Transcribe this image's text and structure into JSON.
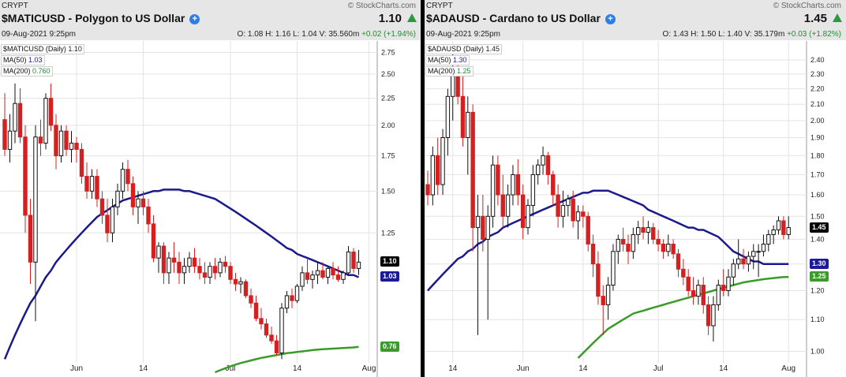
{
  "charts": [
    {
      "exchange": "CRYPT",
      "watermark": "© StockCharts.com",
      "title": "$MATICUSD - Polygon to US Dollar",
      "last": "1.10",
      "date": "09-Aug-2021 9:25pm",
      "ohlc": "O: 1.08   H: 1.16   L: 1.04   V: 35.560m",
      "change": "+0.02 (+1.94%)",
      "legend": [
        {
          "label": "$MATICUSD (Daily)",
          "value": "1.10"
        },
        {
          "label": "MA(50)",
          "value": "1.03"
        },
        {
          "label": "MA(200)",
          "value": "0.760"
        }
      ],
      "tags": [
        {
          "text": "1.10",
          "value": 1.1,
          "color": "#000000"
        },
        {
          "text": "1.03",
          "value": 1.03,
          "color": "#1a1a9a"
        },
        {
          "text": "0.76",
          "value": 0.76,
          "color": "#3a9a2a"
        }
      ]
    },
    {
      "exchange": "CRYPT",
      "watermark": "© StockCharts.com",
      "title": "$ADAUSD - Cardano to US Dollar",
      "last": "1.45",
      "date": "09-Aug-2021 9:25pm",
      "ohlc": "O: 1.43   H: 1.50   L: 1.40   V: 35.179m",
      "change": "+0.03 (+1.82%)",
      "legend": [
        {
          "label": "$ADAUSD (Daily)",
          "value": "1.45"
        },
        {
          "label": "MA(50)",
          "value": "1.30"
        },
        {
          "label": "MA(200)",
          "value": "1.25"
        }
      ],
      "tags": [
        {
          "text": "1.45",
          "value": 1.45,
          "color": "#000000"
        },
        {
          "text": "1.30",
          "value": 1.3,
          "color": "#1a1a9a"
        },
        {
          "text": "1.25",
          "value": 1.25,
          "color": "#3a9a2a"
        }
      ]
    }
  ],
  "chart_data": [
    {
      "type": "candlestick",
      "title": "$MATICUSD - Polygon to US Dollar",
      "scale": "log",
      "grid": true,
      "ylim": [
        0.68,
        2.85
      ],
      "y_ticks": [
        2.75,
        2.5,
        2.25,
        2.0,
        1.75,
        1.5,
        1.25
      ],
      "x_ticks": [
        "Jun",
        "14",
        "Jul",
        "14",
        "Aug"
      ],
      "x_tick_index": [
        14,
        27,
        44,
        57,
        71
      ],
      "up_color": "#111111",
      "down_color": "#d42020",
      "candles": [
        [
          2.05,
          2.3,
          1.75,
          1.8
        ],
        [
          1.8,
          2.1,
          1.7,
          1.95
        ],
        [
          1.95,
          2.4,
          1.85,
          2.2
        ],
        [
          2.2,
          2.35,
          1.85,
          1.9
        ],
        [
          1.9,
          2.0,
          1.25,
          1.35
        ],
        [
          1.35,
          1.45,
          1.0,
          1.1
        ],
        [
          1.1,
          2.0,
          0.85,
          1.9
        ],
        [
          1.9,
          2.05,
          1.75,
          1.85
        ],
        [
          1.85,
          2.3,
          1.8,
          2.25
        ],
        [
          2.25,
          2.4,
          1.95,
          2.0
        ],
        [
          2.0,
          2.1,
          1.65,
          1.75
        ],
        [
          1.75,
          2.0,
          1.7,
          1.95
        ],
        [
          1.95,
          2.0,
          1.75,
          1.8
        ],
        [
          1.8,
          1.95,
          1.7,
          1.85
        ],
        [
          1.85,
          1.9,
          1.7,
          1.8
        ],
        [
          1.8,
          1.85,
          1.55,
          1.6
        ],
        [
          1.6,
          1.7,
          1.45,
          1.5
        ],
        [
          1.5,
          1.65,
          1.45,
          1.6
        ],
        [
          1.6,
          1.65,
          1.4,
          1.45
        ],
        [
          1.45,
          1.5,
          1.3,
          1.35
        ],
        [
          1.35,
          1.45,
          1.2,
          1.25
        ],
        [
          1.25,
          1.45,
          1.2,
          1.4
        ],
        [
          1.4,
          1.55,
          1.35,
          1.5
        ],
        [
          1.5,
          1.7,
          1.45,
          1.65
        ],
        [
          1.65,
          1.72,
          1.5,
          1.55
        ],
        [
          1.55,
          1.6,
          1.35,
          1.4
        ],
        [
          1.4,
          1.5,
          1.3,
          1.45
        ],
        [
          1.45,
          1.5,
          1.35,
          1.4
        ],
        [
          1.4,
          1.45,
          1.25,
          1.3
        ],
        [
          1.3,
          1.35,
          1.1,
          1.12
        ],
        [
          1.12,
          1.2,
          1.05,
          1.18
        ],
        [
          1.18,
          1.2,
          1.0,
          1.05
        ],
        [
          1.05,
          1.15,
          1.0,
          1.12
        ],
        [
          1.12,
          1.2,
          1.05,
          1.1
        ],
        [
          1.1,
          1.15,
          1.0,
          1.05
        ],
        [
          1.05,
          1.12,
          1.0,
          1.08
        ],
        [
          1.08,
          1.15,
          1.05,
          1.12
        ],
        [
          1.12,
          1.17,
          1.05,
          1.08
        ],
        [
          1.08,
          1.12,
          1.02,
          1.05
        ],
        [
          1.05,
          1.1,
          1.0,
          1.03
        ],
        [
          1.03,
          1.1,
          1.0,
          1.08
        ],
        [
          1.08,
          1.12,
          1.02,
          1.05
        ],
        [
          1.05,
          1.12,
          1.03,
          1.1
        ],
        [
          1.1,
          1.13,
          1.05,
          1.08
        ],
        [
          1.08,
          1.1,
          1.0,
          1.02
        ],
        [
          1.02,
          1.05,
          0.97,
          1.0
        ],
        [
          1.0,
          1.03,
          0.96,
          1.01
        ],
        [
          1.01,
          1.02,
          0.94,
          0.95
        ],
        [
          0.95,
          0.98,
          0.9,
          0.92
        ],
        [
          0.92,
          0.95,
          0.85,
          0.86
        ],
        [
          0.86,
          0.9,
          0.82,
          0.84
        ],
        [
          0.84,
          0.86,
          0.79,
          0.8
        ],
        [
          0.8,
          0.83,
          0.77,
          0.78
        ],
        [
          0.78,
          0.8,
          0.73,
          0.74
        ],
        [
          0.74,
          0.92,
          0.72,
          0.9
        ],
        [
          0.9,
          0.97,
          0.88,
          0.95
        ],
        [
          0.95,
          0.98,
          0.9,
          0.93
        ],
        [
          0.93,
          1.0,
          0.92,
          0.99
        ],
        [
          0.99,
          1.08,
          0.97,
          1.05
        ],
        [
          1.05,
          1.12,
          1.0,
          1.02
        ],
        [
          1.02,
          1.06,
          0.98,
          1.04
        ],
        [
          1.04,
          1.1,
          1.0,
          1.06
        ],
        [
          1.06,
          1.1,
          1.02,
          1.03
        ],
        [
          1.03,
          1.08,
          1.0,
          1.07
        ],
        [
          1.07,
          1.1,
          1.02,
          1.04
        ],
        [
          1.04,
          1.08,
          1.01,
          1.02
        ],
        [
          1.02,
          1.06,
          1.0,
          1.05
        ],
        [
          1.05,
          1.18,
          1.04,
          1.15
        ],
        [
          1.15,
          1.17,
          1.05,
          1.07
        ],
        [
          1.07,
          1.16,
          1.04,
          1.1
        ]
      ],
      "ma50": [
        0.72,
        0.76,
        0.8,
        0.84,
        0.88,
        0.92,
        0.95,
        0.99,
        1.03,
        1.06,
        1.1,
        1.13,
        1.16,
        1.19,
        1.22,
        1.25,
        1.28,
        1.31,
        1.34,
        1.36,
        1.38,
        1.4,
        1.42,
        1.44,
        1.45,
        1.46,
        1.47,
        1.48,
        1.49,
        1.5,
        1.5,
        1.51,
        1.51,
        1.51,
        1.51,
        1.5,
        1.5,
        1.49,
        1.48,
        1.47,
        1.46,
        1.45,
        1.43,
        1.41,
        1.39,
        1.37,
        1.35,
        1.33,
        1.31,
        1.29,
        1.27,
        1.25,
        1.23,
        1.21,
        1.19,
        1.17,
        1.16,
        1.14,
        1.13,
        1.12,
        1.11,
        1.1,
        1.09,
        1.08,
        1.07,
        1.06,
        1.05,
        1.04,
        1.04,
        1.03
      ],
      "ma200": [
        null,
        null,
        null,
        null,
        null,
        null,
        null,
        null,
        null,
        null,
        null,
        null,
        null,
        null,
        null,
        null,
        null,
        null,
        null,
        null,
        null,
        null,
        null,
        null,
        null,
        null,
        null,
        null,
        null,
        null,
        null,
        null,
        null,
        null,
        null,
        null,
        null,
        null,
        null,
        null,
        null,
        0.68,
        0.686,
        0.692,
        0.698,
        0.703,
        0.708,
        0.712,
        0.716,
        0.72,
        0.724,
        0.727,
        0.73,
        0.733,
        0.736,
        0.739,
        0.741,
        0.743,
        0.745,
        0.747,
        0.749,
        0.751,
        0.752,
        0.753,
        0.754,
        0.755,
        0.756,
        0.757,
        0.758,
        0.76
      ]
    },
    {
      "type": "candlestick",
      "title": "$ADAUSD - Cardano to US Dollar",
      "scale": "log",
      "grid": true,
      "ylim": [
        0.98,
        2.48
      ],
      "y_ticks": [
        2.4,
        2.3,
        2.2,
        2.1,
        2.0,
        1.9,
        1.8,
        1.7,
        1.6,
        1.5,
        1.4,
        1.3,
        1.2,
        1.1,
        1.0
      ],
      "x_ticks": [
        "14",
        "Jun",
        "14",
        "Jul",
        "14",
        "Aug"
      ],
      "x_tick_index": [
        5,
        19,
        31,
        46,
        59,
        72
      ],
      "up_color": "#111111",
      "down_color": "#d42020",
      "candles": [
        [
          1.65,
          1.72,
          1.55,
          1.6
        ],
        [
          1.6,
          1.85,
          1.55,
          1.8
        ],
        [
          1.8,
          1.9,
          1.6,
          1.65
        ],
        [
          1.65,
          1.95,
          1.6,
          1.9
        ],
        [
          1.9,
          2.2,
          1.8,
          2.15
        ],
        [
          2.15,
          2.45,
          2.0,
          2.35
        ],
        [
          2.35,
          2.42,
          2.1,
          2.15
        ],
        [
          2.15,
          2.3,
          1.85,
          1.9
        ],
        [
          1.9,
          2.15,
          1.7,
          2.05
        ],
        [
          2.05,
          2.1,
          1.35,
          1.45
        ],
        [
          1.45,
          1.6,
          1.05,
          1.5
        ],
        [
          1.5,
          1.6,
          1.35,
          1.4
        ],
        [
          1.4,
          1.55,
          1.1,
          1.5
        ],
        [
          1.5,
          1.8,
          1.45,
          1.75
        ],
        [
          1.75,
          1.8,
          1.55,
          1.6
        ],
        [
          1.6,
          1.7,
          1.45,
          1.5
        ],
        [
          1.5,
          1.65,
          1.45,
          1.6
        ],
        [
          1.6,
          1.75,
          1.55,
          1.7
        ],
        [
          1.7,
          1.78,
          1.55,
          1.6
        ],
        [
          1.6,
          1.65,
          1.4,
          1.45
        ],
        [
          1.45,
          1.58,
          1.42,
          1.55
        ],
        [
          1.55,
          1.75,
          1.5,
          1.7
        ],
        [
          1.7,
          1.78,
          1.65,
          1.75
        ],
        [
          1.75,
          1.85,
          1.7,
          1.8
        ],
        [
          1.8,
          1.82,
          1.65,
          1.7
        ],
        [
          1.7,
          1.72,
          1.55,
          1.6
        ],
        [
          1.6,
          1.65,
          1.45,
          1.5
        ],
        [
          1.5,
          1.62,
          1.45,
          1.55
        ],
        [
          1.55,
          1.6,
          1.5,
          1.58
        ],
        [
          1.58,
          1.62,
          1.45,
          1.48
        ],
        [
          1.48,
          1.55,
          1.4,
          1.52
        ],
        [
          1.52,
          1.55,
          1.45,
          1.5
        ],
        [
          1.5,
          1.52,
          1.35,
          1.38
        ],
        [
          1.38,
          1.42,
          1.25,
          1.3
        ],
        [
          1.3,
          1.35,
          1.15,
          1.18
        ],
        [
          1.18,
          1.22,
          1.05,
          1.15
        ],
        [
          1.15,
          1.25,
          1.1,
          1.22
        ],
        [
          1.22,
          1.38,
          1.2,
          1.35
        ],
        [
          1.35,
          1.42,
          1.3,
          1.4
        ],
        [
          1.4,
          1.45,
          1.35,
          1.38
        ],
        [
          1.38,
          1.42,
          1.3,
          1.35
        ],
        [
          1.35,
          1.45,
          1.32,
          1.42
        ],
        [
          1.42,
          1.48,
          1.38,
          1.45
        ],
        [
          1.45,
          1.5,
          1.4,
          1.43
        ],
        [
          1.43,
          1.48,
          1.38,
          1.45
        ],
        [
          1.45,
          1.47,
          1.38,
          1.4
        ],
        [
          1.4,
          1.44,
          1.35,
          1.38
        ],
        [
          1.38,
          1.4,
          1.32,
          1.35
        ],
        [
          1.35,
          1.42,
          1.33,
          1.38
        ],
        [
          1.38,
          1.4,
          1.32,
          1.34
        ],
        [
          1.34,
          1.36,
          1.25,
          1.28
        ],
        [
          1.28,
          1.32,
          1.22,
          1.25
        ],
        [
          1.25,
          1.28,
          1.18,
          1.2
        ],
        [
          1.2,
          1.25,
          1.15,
          1.18
        ],
        [
          1.18,
          1.24,
          1.15,
          1.22
        ],
        [
          1.22,
          1.25,
          1.12,
          1.15
        ],
        [
          1.15,
          1.18,
          1.05,
          1.08
        ],
        [
          1.08,
          1.18,
          1.03,
          1.15
        ],
        [
          1.15,
          1.24,
          1.13,
          1.22
        ],
        [
          1.22,
          1.28,
          1.18,
          1.2
        ],
        [
          1.2,
          1.28,
          1.18,
          1.25
        ],
        [
          1.25,
          1.32,
          1.22,
          1.3
        ],
        [
          1.3,
          1.4,
          1.28,
          1.32
        ],
        [
          1.32,
          1.36,
          1.28,
          1.3
        ],
        [
          1.3,
          1.35,
          1.27,
          1.33
        ],
        [
          1.33,
          1.38,
          1.28,
          1.35
        ],
        [
          1.35,
          1.38,
          1.25,
          1.35
        ],
        [
          1.35,
          1.42,
          1.33,
          1.38
        ],
        [
          1.38,
          1.44,
          1.35,
          1.42
        ],
        [
          1.42,
          1.46,
          1.38,
          1.44
        ],
        [
          1.44,
          1.5,
          1.42,
          1.48
        ],
        [
          1.48,
          1.5,
          1.4,
          1.42
        ],
        [
          1.42,
          1.5,
          1.4,
          1.45
        ]
      ],
      "ma50": [
        1.2,
        1.22,
        1.24,
        1.26,
        1.28,
        1.3,
        1.32,
        1.33,
        1.35,
        1.36,
        1.38,
        1.39,
        1.41,
        1.42,
        1.43,
        1.45,
        1.46,
        1.47,
        1.48,
        1.49,
        1.5,
        1.51,
        1.52,
        1.53,
        1.54,
        1.55,
        1.56,
        1.57,
        1.58,
        1.59,
        1.6,
        1.61,
        1.61,
        1.62,
        1.62,
        1.62,
        1.62,
        1.61,
        1.6,
        1.59,
        1.58,
        1.57,
        1.56,
        1.55,
        1.53,
        1.52,
        1.51,
        1.5,
        1.49,
        1.48,
        1.47,
        1.46,
        1.45,
        1.45,
        1.44,
        1.44,
        1.43,
        1.42,
        1.41,
        1.39,
        1.37,
        1.35,
        1.34,
        1.33,
        1.32,
        1.31,
        1.31,
        1.3,
        1.3,
        1.3,
        1.3,
        1.3,
        1.3
      ],
      "ma200": [
        null,
        null,
        null,
        null,
        null,
        null,
        null,
        null,
        null,
        null,
        null,
        null,
        null,
        null,
        null,
        null,
        null,
        null,
        null,
        null,
        null,
        null,
        null,
        null,
        null,
        null,
        null,
        null,
        null,
        null,
        0.98,
        0.995,
        1.01,
        1.025,
        1.04,
        1.055,
        1.07,
        1.08,
        1.09,
        1.1,
        1.11,
        1.12,
        1.125,
        1.13,
        1.135,
        1.14,
        1.145,
        1.15,
        1.155,
        1.16,
        1.165,
        1.17,
        1.175,
        1.18,
        1.185,
        1.19,
        1.195,
        1.2,
        1.205,
        1.21,
        1.215,
        1.22,
        1.225,
        1.23,
        1.233,
        1.236,
        1.239,
        1.242,
        1.244,
        1.246,
        1.248,
        1.25,
        1.25
      ]
    }
  ]
}
